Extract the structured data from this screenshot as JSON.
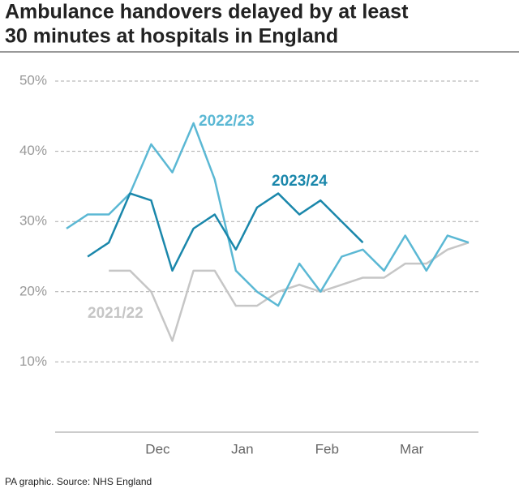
{
  "chart_data": {
    "type": "line",
    "title": [
      "Ambulance handovers delayed by at least",
      "30 minutes at hospitals in England"
    ],
    "source": "PA graphic. Source: NHS England",
    "categories": [
      null,
      null,
      null,
      null,
      "Dec",
      null,
      null,
      null,
      "Jan",
      null,
      null,
      null,
      "Feb",
      null,
      null,
      null,
      "Mar",
      null,
      null,
      null
    ],
    "series": [
      {
        "name": "2022/23",
        "color": "#5bb8d4",
        "values": [
          29,
          31,
          31,
          34,
          41,
          37,
          44,
          36,
          23,
          20,
          18,
          24,
          20,
          25,
          26,
          23,
          28,
          23,
          28,
          27
        ]
      },
      {
        "name": "2023/24",
        "color": "#1a87ab",
        "values": [
          null,
          25,
          27,
          34,
          33,
          23,
          29,
          31,
          26,
          32,
          34,
          31,
          33,
          30,
          27,
          null,
          null,
          null,
          null,
          null
        ]
      },
      {
        "name": "2021/22",
        "color": "#c6c6c6",
        "values": [
          null,
          null,
          23,
          23,
          20,
          13,
          23,
          23,
          18,
          18,
          20,
          21,
          20,
          21,
          22,
          22,
          24,
          24,
          26,
          27
        ]
      }
    ],
    "ylim": [
      0,
      50
    ],
    "yticks": [
      {
        "value": 10,
        "label": "10%"
      },
      {
        "value": 20,
        "label": "20%"
      },
      {
        "value": 30,
        "label": "30%"
      },
      {
        "value": 40,
        "label": "40%"
      },
      {
        "value": 50,
        "label": "50%"
      }
    ],
    "grid": true
  }
}
